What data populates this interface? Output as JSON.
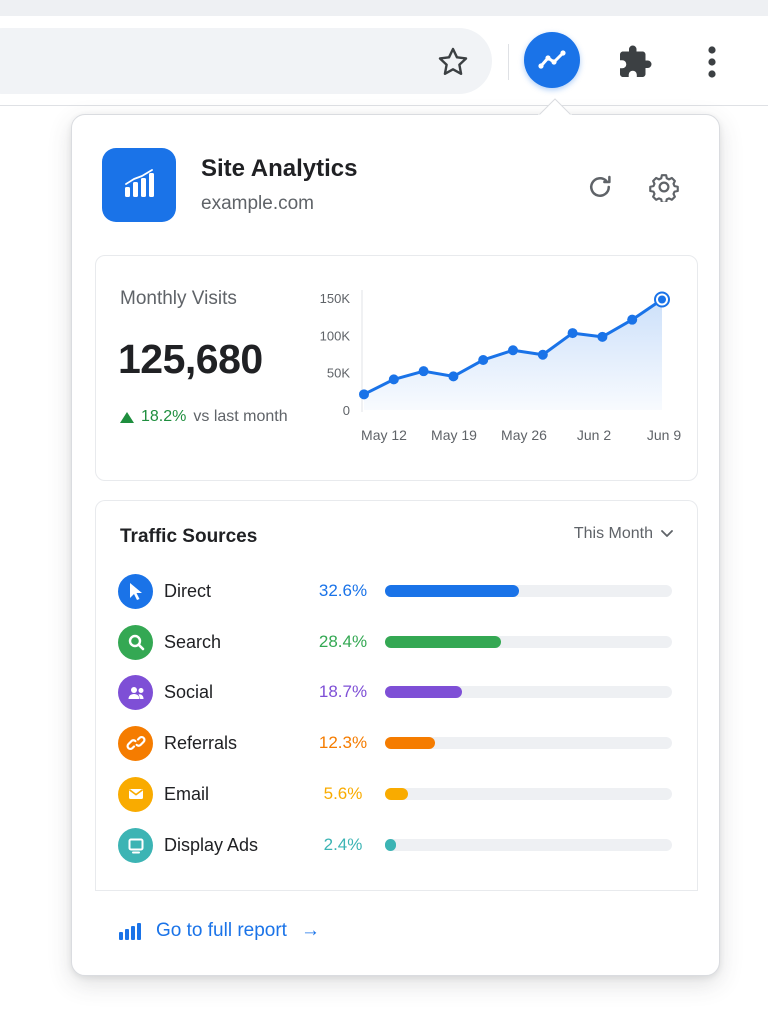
{
  "browser": {
    "star_icon": "star-outline-icon",
    "extension_icon": "trend-line-icon",
    "puzzle_icon": "puzzle-icon",
    "menu_icon": "more-vert-icon",
    "accent": "#1a73e8"
  },
  "popup": {
    "app_name": "Site Analytics",
    "domain": "example.com",
    "refresh_icon": "refresh-icon",
    "settings_icon": "gear-icon",
    "stats": {
      "label": "Monthly Visits",
      "value": "125,680",
      "change_pct": "18.2%",
      "change_note": "vs last month",
      "change_color": "#1e8e3e"
    },
    "traffic": {
      "title": "Traffic Sources",
      "period": "This Month",
      "sources": [
        {
          "name": "Direct",
          "pct_label": "32.6%",
          "pct": 32.6,
          "color": "#1a73e8",
          "icon": "cursor-icon"
        },
        {
          "name": "Search",
          "pct_label": "28.4%",
          "pct": 28.4,
          "color": "#34a853",
          "icon": "search-icon"
        },
        {
          "name": "Social",
          "pct_label": "18.7%",
          "pct": 18.7,
          "color": "#7e4fd6",
          "icon": "people-icon"
        },
        {
          "name": "Referrals",
          "pct_label": "12.3%",
          "pct": 12.3,
          "color": "#f57c00",
          "icon": "link-icon"
        },
        {
          "name": "Email",
          "pct_label": "5.6%",
          "pct": 5.6,
          "color": "#f9ab00",
          "icon": "mail-icon"
        },
        {
          "name": "Display Ads",
          "pct_label": "2.4%",
          "pct": 2.4,
          "color": "#3cb4b4",
          "icon": "monitor-icon"
        }
      ]
    },
    "footer": {
      "link_label": "Go to full report",
      "arrow": "→"
    }
  },
  "chart_data": {
    "type": "area",
    "x_tick_labels": [
      "May 12",
      "May 19",
      "May 26",
      "Jun 2",
      "Jun 9"
    ],
    "y_tick_labels": [
      "0",
      "50K",
      "100K",
      "150K"
    ],
    "ylim": [
      0,
      150000
    ],
    "points": [
      21000,
      41000,
      52000,
      45000,
      67000,
      80000,
      74000,
      103000,
      98000,
      121000,
      148000
    ],
    "line_color": "#1a73e8",
    "grid": false
  }
}
